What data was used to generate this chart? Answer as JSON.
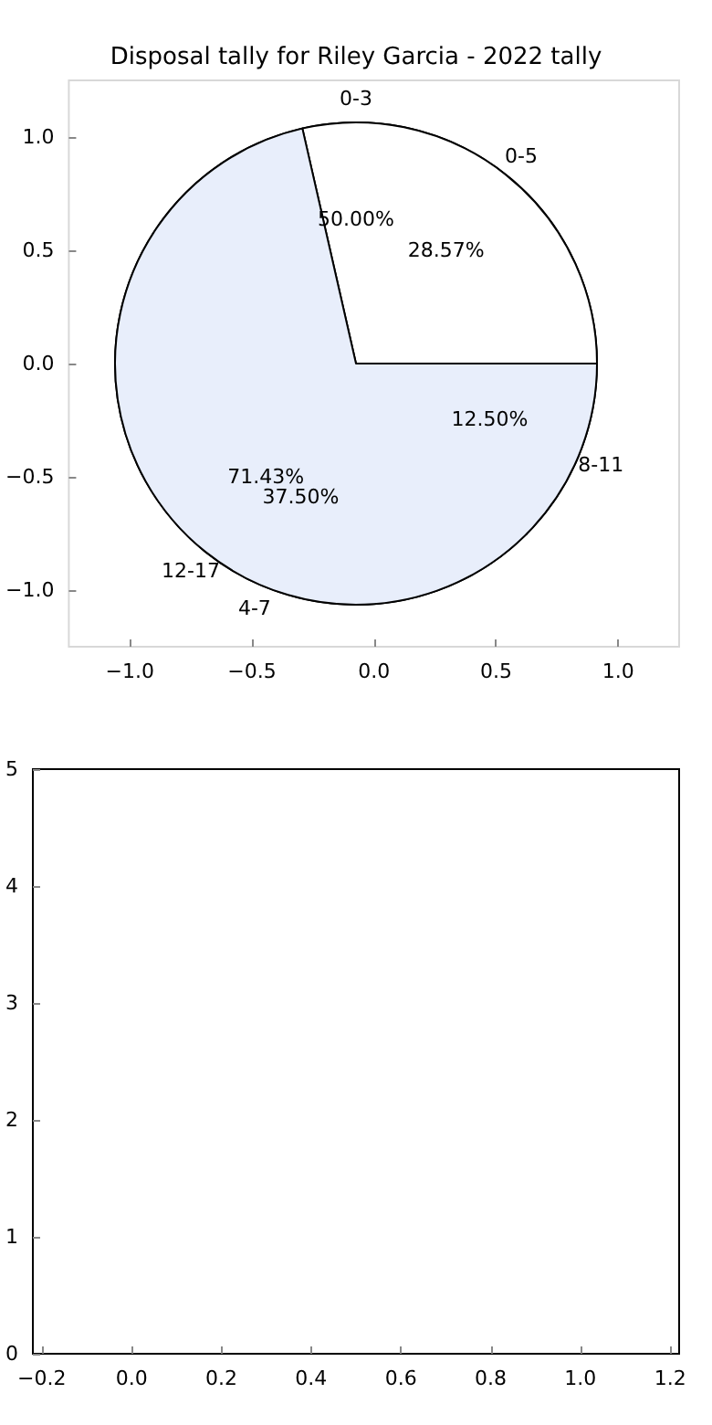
{
  "chart_data": [
    {
      "type": "scatter",
      "title": "Disposal tally for Riley Garcia - 2022 tally",
      "xlim": [
        -1.25,
        1.25
      ],
      "ylim": [
        -1.25,
        1.25
      ],
      "xticks": [
        {
          "value": -1,
          "label": "−1.0"
        },
        {
          "value": -0.5,
          "label": "−0.5"
        },
        {
          "value": 0,
          "label": "0.0"
        },
        {
          "value": 0.5,
          "label": "0.5"
        },
        {
          "value": 1,
          "label": "1.0"
        }
      ],
      "yticks": [
        {
          "value": -1,
          "label": "−1.0"
        },
        {
          "value": -0.5,
          "label": "−0.5"
        },
        {
          "value": 0,
          "label": "0.0"
        },
        {
          "value": 0.5,
          "label": "0.5"
        },
        {
          "value": 1,
          "label": "1.0"
        }
      ]
    },
    {
      "type": "pie",
      "categories": [
        "0-5",
        "12-17"
      ],
      "values": [
        28.57,
        71.43
      ],
      "colors": [
        "#ffffff",
        "#e8eefb"
      ],
      "value_labels": [
        "28.57%",
        "71.43%"
      ]
    },
    {
      "type": "pie",
      "categories": [
        "0-3",
        "4-7",
        "8-11"
      ],
      "values": [
        50,
        37.5,
        12.5
      ],
      "colors": [
        "#ffffff",
        "#e8eefb",
        "#c6d9f5"
      ],
      "value_labels": [
        "50.00%",
        "37.50%",
        "12.50%"
      ]
    },
    {
      "type": "scatter",
      "xlim": [
        -0.22,
        1.22
      ],
      "ylim": [
        0,
        5
      ],
      "xticks": [
        {
          "value": -0.2,
          "label": "−0.2"
        },
        {
          "value": 0,
          "label": "0.0"
        },
        {
          "value": 0.2,
          "label": "0.2"
        },
        {
          "value": 0.4,
          "label": "0.4"
        },
        {
          "value": 0.6,
          "label": "0.6"
        },
        {
          "value": 0.8,
          "label": "0.8"
        },
        {
          "value": 1,
          "label": "1.0"
        },
        {
          "value": 1.2,
          "label": "1.2"
        }
      ],
      "yticks": [
        0,
        1,
        2,
        3,
        4,
        5
      ]
    }
  ]
}
